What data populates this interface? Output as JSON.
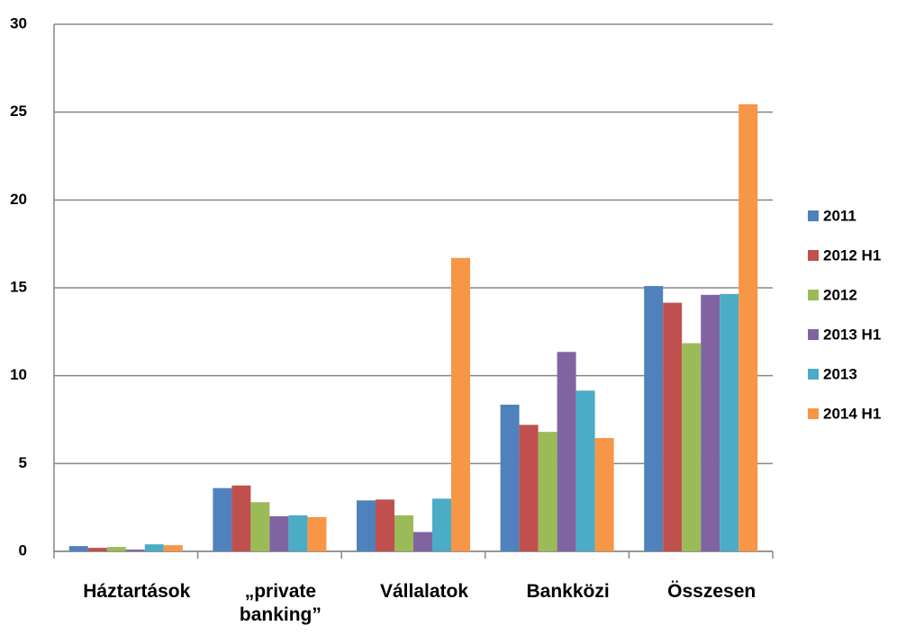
{
  "chart_data": {
    "type": "bar",
    "categories": [
      "Háztartások",
      "„private banking”",
      "Vállalatok",
      "Bankközi",
      "Összesen"
    ],
    "series": [
      {
        "name": "2011",
        "color": "#4f81bd",
        "values": [
          0.3,
          3.6,
          2.9,
          8.35,
          15.1
        ]
      },
      {
        "name": "2012 H1",
        "color": "#c0504d",
        "values": [
          0.2,
          3.75,
          2.95,
          7.2,
          14.15
        ]
      },
      {
        "name": "2012",
        "color": "#9bbb59",
        "values": [
          0.25,
          2.8,
          2.05,
          6.8,
          11.85
        ]
      },
      {
        "name": "2013 H1",
        "color": "#8064a2",
        "values": [
          0.1,
          2.0,
          1.1,
          11.35,
          14.6
        ]
      },
      {
        "name": "2013",
        "color": "#4bacc6",
        "values": [
          0.4,
          2.05,
          3.0,
          9.15,
          14.65
        ]
      },
      {
        "name": "2014 H1",
        "color": "#f79646",
        "values": [
          0.35,
          1.95,
          16.7,
          6.45,
          25.45
        ]
      }
    ],
    "ylim": [
      0,
      30
    ],
    "yticks": [
      0,
      5,
      10,
      15,
      20,
      25,
      30
    ],
    "grid": true,
    "legend": "right"
  }
}
